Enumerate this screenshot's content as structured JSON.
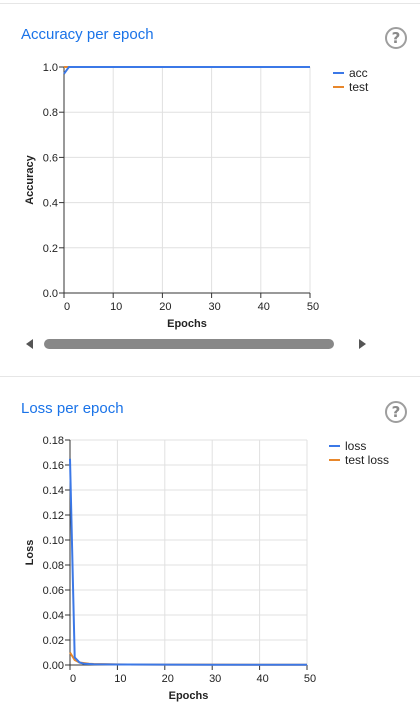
{
  "cards": [
    {
      "title": "Accuracy per epoch",
      "help_icon": "help-circle-icon"
    },
    {
      "title": "Loss per epoch",
      "help_icon": "help-circle-icon"
    }
  ],
  "colors": {
    "primary": "#3b78e7",
    "secondary": "#e8872b",
    "title": "#1a73e8"
  },
  "chart_data": [
    {
      "type": "line",
      "title": "",
      "xlabel": "Epochs",
      "ylabel": "Accuracy",
      "xlim": [
        0,
        50
      ],
      "ylim": [
        0,
        1
      ],
      "xticks": [
        "0",
        "10",
        "20",
        "30",
        "40",
        "50"
      ],
      "yticks": [
        "0.0",
        "0.2",
        "0.4",
        "0.6",
        "0.8",
        "1.0"
      ],
      "grid": true,
      "legend_placement": "top-right",
      "series": [
        {
          "name": "acc",
          "color": "#3b78e7",
          "x": [
            0,
            1,
            2,
            3,
            5,
            10,
            20,
            30,
            40,
            50
          ],
          "y": [
            0.97,
            1.0,
            1.0,
            1.0,
            1.0,
            1.0,
            1.0,
            1.0,
            1.0,
            1.0
          ]
        },
        {
          "name": "test",
          "color": "#e8872b",
          "x": [
            0,
            1,
            2,
            3,
            5,
            10,
            20,
            30,
            40,
            50
          ],
          "y": [
            1.0,
            1.0,
            1.0,
            1.0,
            1.0,
            1.0,
            1.0,
            1.0,
            1.0,
            1.0
          ]
        }
      ]
    },
    {
      "type": "line",
      "title": "",
      "xlabel": "Epochs",
      "ylabel": "Loss",
      "xlim": [
        0,
        50
      ],
      "ylim": [
        0,
        0.18
      ],
      "xticks": [
        "0",
        "10",
        "20",
        "30",
        "40",
        "50"
      ],
      "yticks": [
        "0.00",
        "0.02",
        "0.04",
        "0.06",
        "0.08",
        "0.10",
        "0.12",
        "0.14",
        "0.16",
        "0.18"
      ],
      "grid": true,
      "legend_placement": "top-right",
      "series": [
        {
          "name": "loss",
          "color": "#3b78e7",
          "x": [
            0,
            1,
            2,
            3,
            4,
            5,
            10,
            20,
            30,
            40,
            50
          ],
          "y": [
            0.165,
            0.006,
            0.002,
            0.001,
            0.0008,
            0.0006,
            0.0004,
            0.0003,
            0.0002,
            0.0002,
            0.0002
          ]
        },
        {
          "name": "test loss",
          "color": "#e8872b",
          "x": [
            0,
            1,
            2,
            3,
            4,
            5,
            10,
            20,
            30,
            40,
            50
          ],
          "y": [
            0.01,
            0.004,
            0.002,
            0.0015,
            0.001,
            0.0008,
            0.0005,
            0.0003,
            0.0003,
            0.0002,
            0.0002
          ]
        }
      ]
    }
  ]
}
